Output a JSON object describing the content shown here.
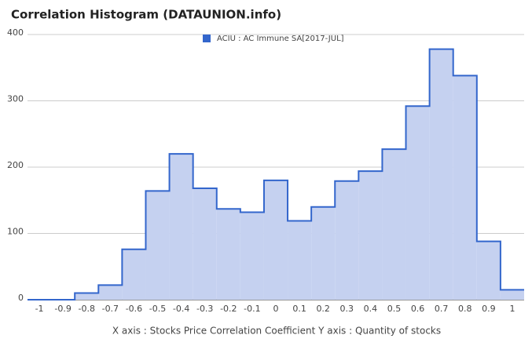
{
  "chart_data": {
    "type": "histogram",
    "title": "Correlation Histogram (DATAUNION.info)",
    "x_label": "X axis : Stocks Price Correlation Coefficient  Y axis : Quantity of stocks",
    "series": [
      {
        "name": "ACIU : AC Immune SA[2017-JUL]",
        "color": "#3366cc",
        "values": [
          0,
          0,
          10,
          22,
          76,
          164,
          220,
          168,
          137,
          132,
          180,
          119,
          140,
          179,
          194,
          227,
          292,
          378,
          338,
          88,
          15
        ]
      }
    ],
    "x": [
      -1,
      -0.9,
      -0.8,
      -0.7,
      -0.6,
      -0.5,
      -0.4,
      -0.3,
      -0.2,
      -0.1,
      0,
      0.1,
      0.2,
      0.3,
      0.4,
      0.5,
      0.6,
      0.7,
      0.8,
      0.9,
      1
    ],
    "xlim": [
      -1.05,
      1.05
    ],
    "ylim": [
      0,
      400
    ],
    "yticks": [
      0,
      100,
      200,
      300,
      400
    ],
    "grid": true
  }
}
